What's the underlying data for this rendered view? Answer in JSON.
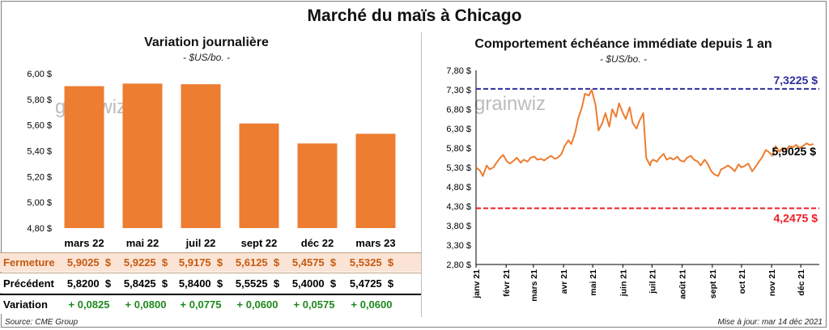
{
  "title": "Marché du maïs à Chicago",
  "chart_data": [
    {
      "type": "bar",
      "title": "Variation journalière",
      "unit": "- $US/bo. -",
      "categories": [
        "mars 22",
        "mai 22",
        "juil 22",
        "sept 22",
        "déc 22",
        "mars 23"
      ],
      "values": [
        5.9025,
        5.9225,
        5.9175,
        5.6125,
        5.4575,
        5.5325
      ],
      "ylim": [
        4.8,
        6.0
      ],
      "yticks": [
        "4,80 $",
        "5,00 $",
        "5,20 $",
        "5,40 $",
        "5,60 $",
        "5,80 $",
        "6,00 $"
      ],
      "ytick_values": [
        4.8,
        5.0,
        5.2,
        5.4,
        5.6,
        5.8,
        6.0
      ],
      "bar_color": "#ed7d31",
      "watermark": "grainwiz"
    },
    {
      "type": "line",
      "title": "Comportement  échéance immédiate depuis 1 an",
      "unit": "- $US/bo. -",
      "ylim": [
        2.8,
        7.8
      ],
      "yticks": [
        "2,80 $",
        "3,30 $",
        "3,80 $",
        "4,30 $",
        "4,80 $",
        "5,30 $",
        "5,80 $",
        "6,30 $",
        "6,80 $",
        "7,30 $",
        "7,80 $"
      ],
      "ytick_values": [
        2.8,
        3.3,
        3.8,
        4.3,
        4.8,
        5.3,
        5.8,
        6.3,
        6.8,
        7.3,
        7.8
      ],
      "xticks": [
        "janv 21",
        "févr 21",
        "mars 21",
        "avr 21",
        "mai 21",
        "juin 21",
        "juil 21",
        "août 21",
        "sept 21",
        "oct 21",
        "nov 21",
        "déc 21"
      ],
      "line_color": "#ed7d31",
      "series": [
        {
          "x": [
            "2021-01-01",
            "2021-01-05",
            "2021-01-08",
            "2021-01-12",
            "2021-01-15",
            "2021-01-19",
            "2021-01-22",
            "2021-01-26",
            "2021-01-29",
            "2021-02-02",
            "2021-02-05",
            "2021-02-09",
            "2021-02-12",
            "2021-02-16",
            "2021-02-19",
            "2021-02-23",
            "2021-02-26",
            "2021-03-02",
            "2021-03-05",
            "2021-03-09",
            "2021-03-12",
            "2021-03-16",
            "2021-03-19",
            "2021-03-23",
            "2021-03-26",
            "2021-03-30",
            "2021-04-02",
            "2021-04-06",
            "2021-04-09",
            "2021-04-13",
            "2021-04-16",
            "2021-04-20",
            "2021-04-23",
            "2021-04-27",
            "2021-04-30",
            "2021-05-04",
            "2021-05-07",
            "2021-05-11",
            "2021-05-14",
            "2021-05-18",
            "2021-05-21",
            "2021-05-25",
            "2021-05-28",
            "2021-06-01",
            "2021-06-04",
            "2021-06-08",
            "2021-06-11",
            "2021-06-15",
            "2021-06-18",
            "2021-06-22",
            "2021-06-25",
            "2021-06-29",
            "2021-06-30",
            "2021-07-02",
            "2021-07-06",
            "2021-07-09",
            "2021-07-13",
            "2021-07-16",
            "2021-07-20",
            "2021-07-23",
            "2021-07-27",
            "2021-07-30",
            "2021-08-03",
            "2021-08-06",
            "2021-08-10",
            "2021-08-13",
            "2021-08-17",
            "2021-08-20",
            "2021-08-24",
            "2021-08-27",
            "2021-08-31",
            "2021-09-03",
            "2021-09-07",
            "2021-09-10",
            "2021-09-14",
            "2021-09-17",
            "2021-09-21",
            "2021-09-24",
            "2021-09-28",
            "2021-10-01",
            "2021-10-05",
            "2021-10-08",
            "2021-10-12",
            "2021-10-15",
            "2021-10-19",
            "2021-10-22",
            "2021-10-26",
            "2021-10-29",
            "2021-11-02",
            "2021-11-05",
            "2021-11-09",
            "2021-11-12",
            "2021-11-16",
            "2021-11-19",
            "2021-11-23",
            "2021-11-26",
            "2021-11-30",
            "2021-12-03",
            "2021-12-07",
            "2021-12-10",
            "2021-12-14"
          ],
          "y": [
            5.3,
            5.22,
            5.08,
            5.35,
            5.25,
            5.3,
            5.42,
            5.55,
            5.62,
            5.45,
            5.4,
            5.48,
            5.55,
            5.42,
            5.5,
            5.45,
            5.55,
            5.58,
            5.5,
            5.52,
            5.48,
            5.55,
            5.6,
            5.52,
            5.55,
            5.65,
            5.85,
            6.0,
            5.9,
            6.2,
            6.55,
            6.85,
            7.2,
            7.15,
            7.3,
            6.9,
            6.25,
            6.45,
            6.7,
            6.35,
            6.8,
            6.6,
            6.95,
            6.7,
            6.55,
            6.85,
            6.45,
            6.3,
            6.5,
            6.7,
            5.55,
            5.35,
            5.45,
            5.5,
            5.45,
            5.55,
            5.65,
            5.5,
            5.55,
            5.5,
            5.58,
            5.48,
            5.45,
            5.55,
            5.6,
            5.5,
            5.45,
            5.35,
            5.5,
            5.4,
            5.2,
            5.12,
            5.08,
            5.25,
            5.3,
            5.35,
            5.28,
            5.2,
            5.38,
            5.3,
            5.35,
            5.4,
            5.2,
            5.3,
            5.45,
            5.55,
            5.75,
            5.7,
            5.6,
            5.85,
            5.7,
            5.8,
            5.75,
            5.85,
            5.82,
            5.88,
            5.8,
            5.85,
            5.92,
            5.88,
            5.9025
          ]
        }
      ],
      "reference_lines": [
        {
          "value": 7.3225,
          "label": "7,3225 $",
          "color": "#2e2e9c"
        },
        {
          "value": 4.2475,
          "label": "4,2475 $",
          "color": "#ee1c24"
        }
      ],
      "last_value_label": "5,9025 $",
      "watermark": "grainwiz"
    }
  ],
  "table": {
    "rows": [
      {
        "label": "Fermeture",
        "values": [
          "5,9025  $",
          "5,9225  $",
          "5,9175  $",
          "5,6125  $",
          "5,4575  $",
          "5,5325  $"
        ],
        "bg": "#fbe4d5",
        "label_color": "#c55a11",
        "value_color": "#c55a11"
      },
      {
        "label": "Précédent",
        "values": [
          "5,8200  $",
          "5,8425  $",
          "5,8400  $",
          "5,5525  $",
          "5,4000  $",
          "5,4725  $"
        ],
        "bg": "#ffffff",
        "label_color": "#000000",
        "value_color": "#000000"
      },
      {
        "label": "Variation",
        "values": [
          "+ 0,0825",
          "+ 0,0800",
          "+ 0,0775",
          "+ 0,0600",
          "+ 0,0575",
          "+ 0,0600"
        ],
        "bg": "#ffffff",
        "label_color": "#000000",
        "value_color": "#1e8a1e"
      }
    ]
  },
  "footer": {
    "source": "Source: CME Group",
    "updated": "Mise à jour: mar 14 déc 2021"
  }
}
